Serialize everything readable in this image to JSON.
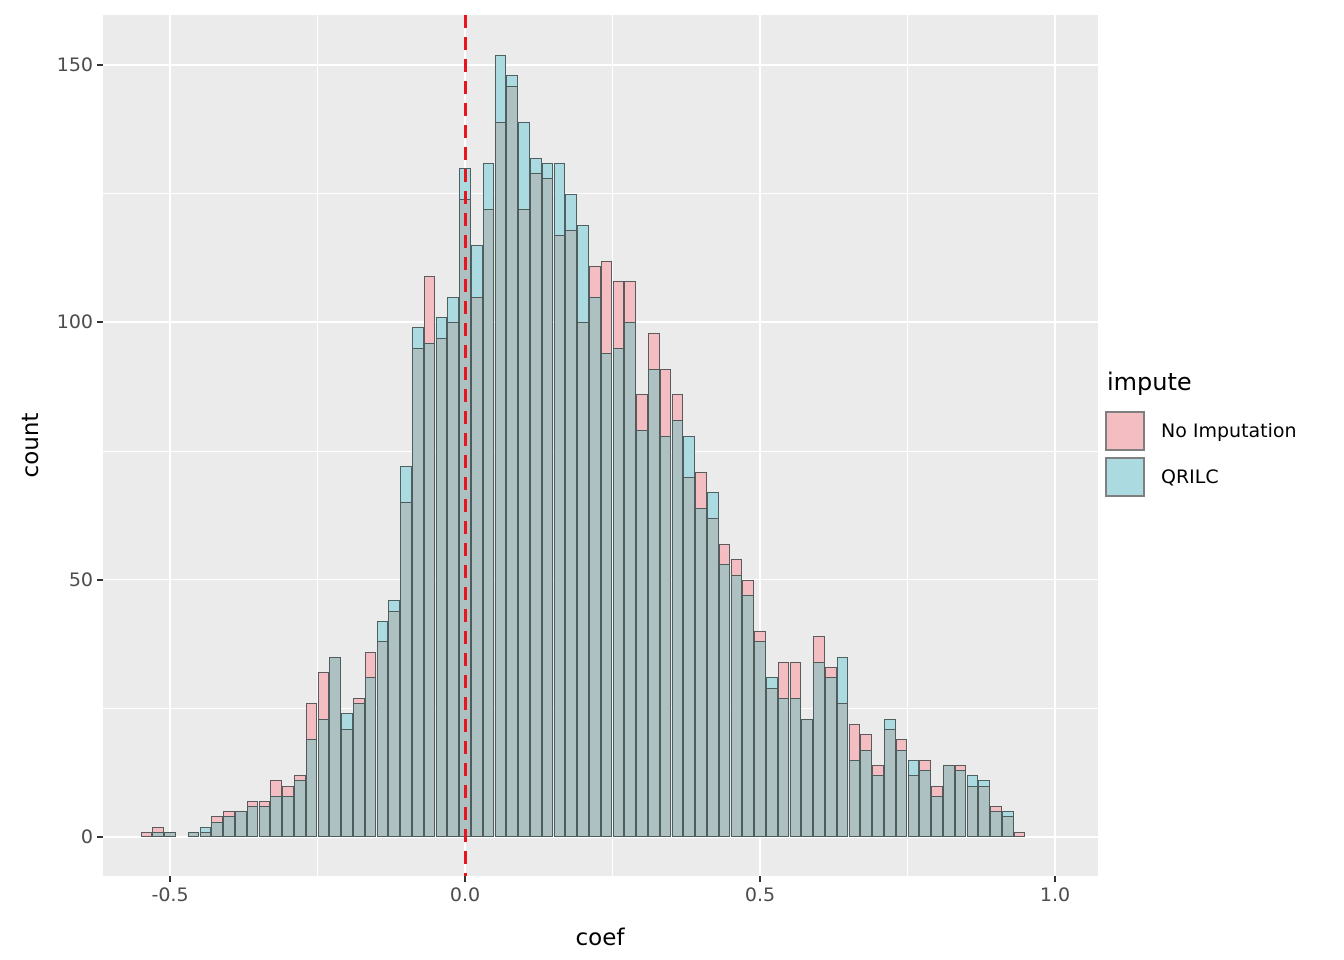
{
  "figure": {
    "xlabel": "coef",
    "ylabel": "count"
  },
  "axes": {
    "x_ticks": [
      {
        "label": "-0.5",
        "value": -0.5
      },
      {
        "label": "0.0",
        "value": 0.0
      },
      {
        "label": "0.5",
        "value": 0.5
      },
      {
        "label": "1.0",
        "value": 1.0
      }
    ],
    "x_minor": [
      -0.25,
      0.25,
      0.75
    ],
    "y_ticks": [
      {
        "label": "0",
        "value": 0
      },
      {
        "label": "50",
        "value": 50
      },
      {
        "label": "100",
        "value": 100
      },
      {
        "label": "150",
        "value": 150
      }
    ],
    "y_minor": [
      25,
      75,
      125
    ]
  },
  "legend": {
    "title": "impute",
    "items": [
      {
        "label": "No Imputation",
        "color": "#F3BDC1"
      },
      {
        "label": "QRILC",
        "color": "#ABDAE0"
      }
    ]
  },
  "colors": {
    "pink_fill": "#F3BDC1",
    "teal_fill": "#ABDAE0",
    "overlap_fill": "#ADC1C2",
    "bar_border": "#3E4A4A",
    "panel_bg": "#EBEBEB",
    "grid": "#FFFFFF",
    "vline_red": "#E8151E",
    "tick_text": "#4D4D4D"
  },
  "chart_data": {
    "type": "bar",
    "subtype": "overlaid-histogram",
    "title": "",
    "xlabel": "coef",
    "ylabel": "count",
    "xlim": [
      -0.61,
      1.07
    ],
    "ylim": [
      0,
      160
    ],
    "grid": true,
    "legend_position": "right",
    "bin_width": 0.02,
    "vline": {
      "x": 0.0,
      "color": "#E8151E",
      "style": "dashed"
    },
    "bin_centers": [
      -0.54,
      -0.52,
      -0.5,
      -0.48,
      -0.46,
      -0.44,
      -0.42,
      -0.4,
      -0.38,
      -0.36,
      -0.34,
      -0.32,
      -0.3,
      -0.28,
      -0.26,
      -0.24,
      -0.22,
      -0.2,
      -0.18,
      -0.16,
      -0.14,
      -0.12,
      -0.1,
      -0.08,
      -0.06,
      -0.04,
      -0.02,
      0.0,
      0.02,
      0.04,
      0.06,
      0.08,
      0.1,
      0.12,
      0.14,
      0.16,
      0.18,
      0.2,
      0.22,
      0.24,
      0.26,
      0.28,
      0.3,
      0.32,
      0.34,
      0.36,
      0.38,
      0.4,
      0.42,
      0.44,
      0.46,
      0.48,
      0.5,
      0.52,
      0.54,
      0.56,
      0.58,
      0.6,
      0.62,
      0.64,
      0.66,
      0.68,
      0.7,
      0.72,
      0.74,
      0.76,
      0.78,
      0.8,
      0.82,
      0.84,
      0.86,
      0.88,
      0.9,
      0.92,
      0.94
    ],
    "series": [
      {
        "name": "No Imputation",
        "values": [
          1,
          2,
          1,
          0,
          1,
          1,
          4,
          5,
          5,
          7,
          7,
          11,
          10,
          12,
          26,
          32,
          35,
          21,
          27,
          36,
          38,
          44,
          65,
          95,
          109,
          97,
          100,
          124,
          105,
          122,
          139,
          146,
          122,
          129,
          128,
          117,
          118,
          100,
          111,
          112,
          108,
          108,
          86,
          98,
          91,
          86,
          70,
          71,
          62,
          57,
          54,
          50,
          40,
          29,
          34,
          34,
          23,
          39,
          33,
          26,
          22,
          20,
          14,
          21,
          19,
          12,
          15,
          10,
          14,
          14,
          10,
          10,
          6,
          4,
          1
        ]
      },
      {
        "name": "QRILC",
        "values": [
          0,
          1,
          1,
          0,
          1,
          2,
          3,
          4,
          5,
          6,
          6,
          8,
          8,
          11,
          19,
          23,
          35,
          24,
          26,
          31,
          42,
          46,
          72,
          99,
          96,
          101,
          105,
          130,
          115,
          131,
          152,
          148,
          139,
          132,
          131,
          131,
          125,
          119,
          105,
          94,
          95,
          100,
          79,
          91,
          78,
          81,
          78,
          64,
          67,
          53,
          51,
          47,
          38,
          31,
          27,
          27,
          23,
          34,
          31,
          35,
          15,
          17,
          12,
          23,
          17,
          15,
          13,
          8,
          14,
          13,
          12,
          11,
          5,
          5,
          0
        ]
      }
    ]
  }
}
